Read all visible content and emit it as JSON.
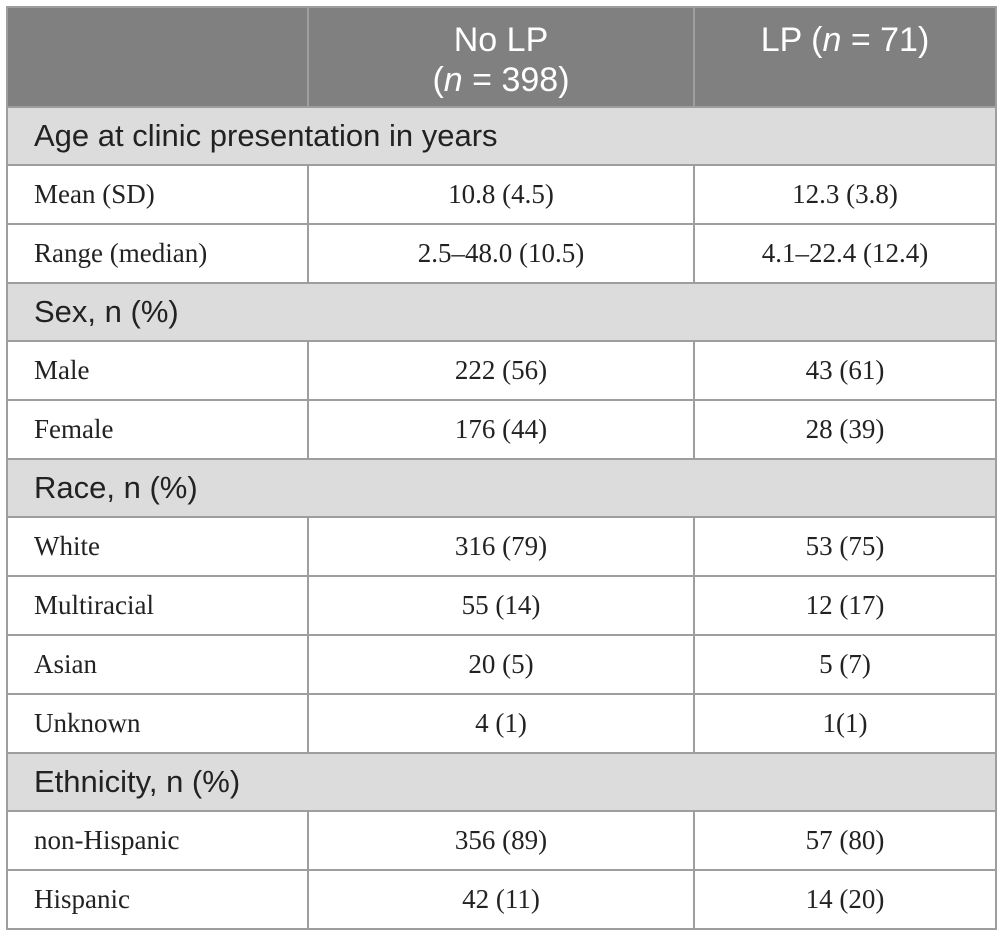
{
  "header": {
    "col1": "",
    "col2_line1": "No LP",
    "col2_n_prefix": "(",
    "col2_n": "n",
    "col2_n_suffix": " = 398)",
    "col3_prefix": "LP (",
    "col3_n": "n",
    "col3_suffix": " = 71)"
  },
  "sections": [
    {
      "title": "Age at clinic presentation in years",
      "rows": [
        {
          "label": "Mean (SD)",
          "no_lp": "10.8 (4.5)",
          "lp": "12.3 (3.8)"
        },
        {
          "label": "Range (median)",
          "no_lp": "2.5–48.0 (10.5)",
          "lp": "4.1–22.4 (12.4)"
        }
      ]
    },
    {
      "title": "Sex, n (%)",
      "rows": [
        {
          "label": "Male",
          "no_lp": "222 (56)",
          "lp": "43 (61)"
        },
        {
          "label": "Female",
          "no_lp": "176 (44)",
          "lp": "28 (39)"
        }
      ]
    },
    {
      "title": "Race, n (%)",
      "rows": [
        {
          "label": "White",
          "no_lp": "316 (79)",
          "lp": "53 (75)"
        },
        {
          "label": "Multiracial",
          "no_lp": "55 (14)",
          "lp": "12 (17)"
        },
        {
          "label": "Asian",
          "no_lp": "20 (5)",
          "lp": "5 (7)"
        },
        {
          "label": "Unknown",
          "no_lp": "4 (1)",
          "lp": "1(1)"
        }
      ]
    },
    {
      "title": "Ethnicity, n (%)",
      "rows": [
        {
          "label": "non-Hispanic",
          "no_lp": "356 (89)",
          "lp": "57 (80)"
        },
        {
          "label": "Hispanic",
          "no_lp": "42 (11)",
          "lp": "14 (20)"
        }
      ]
    }
  ]
}
